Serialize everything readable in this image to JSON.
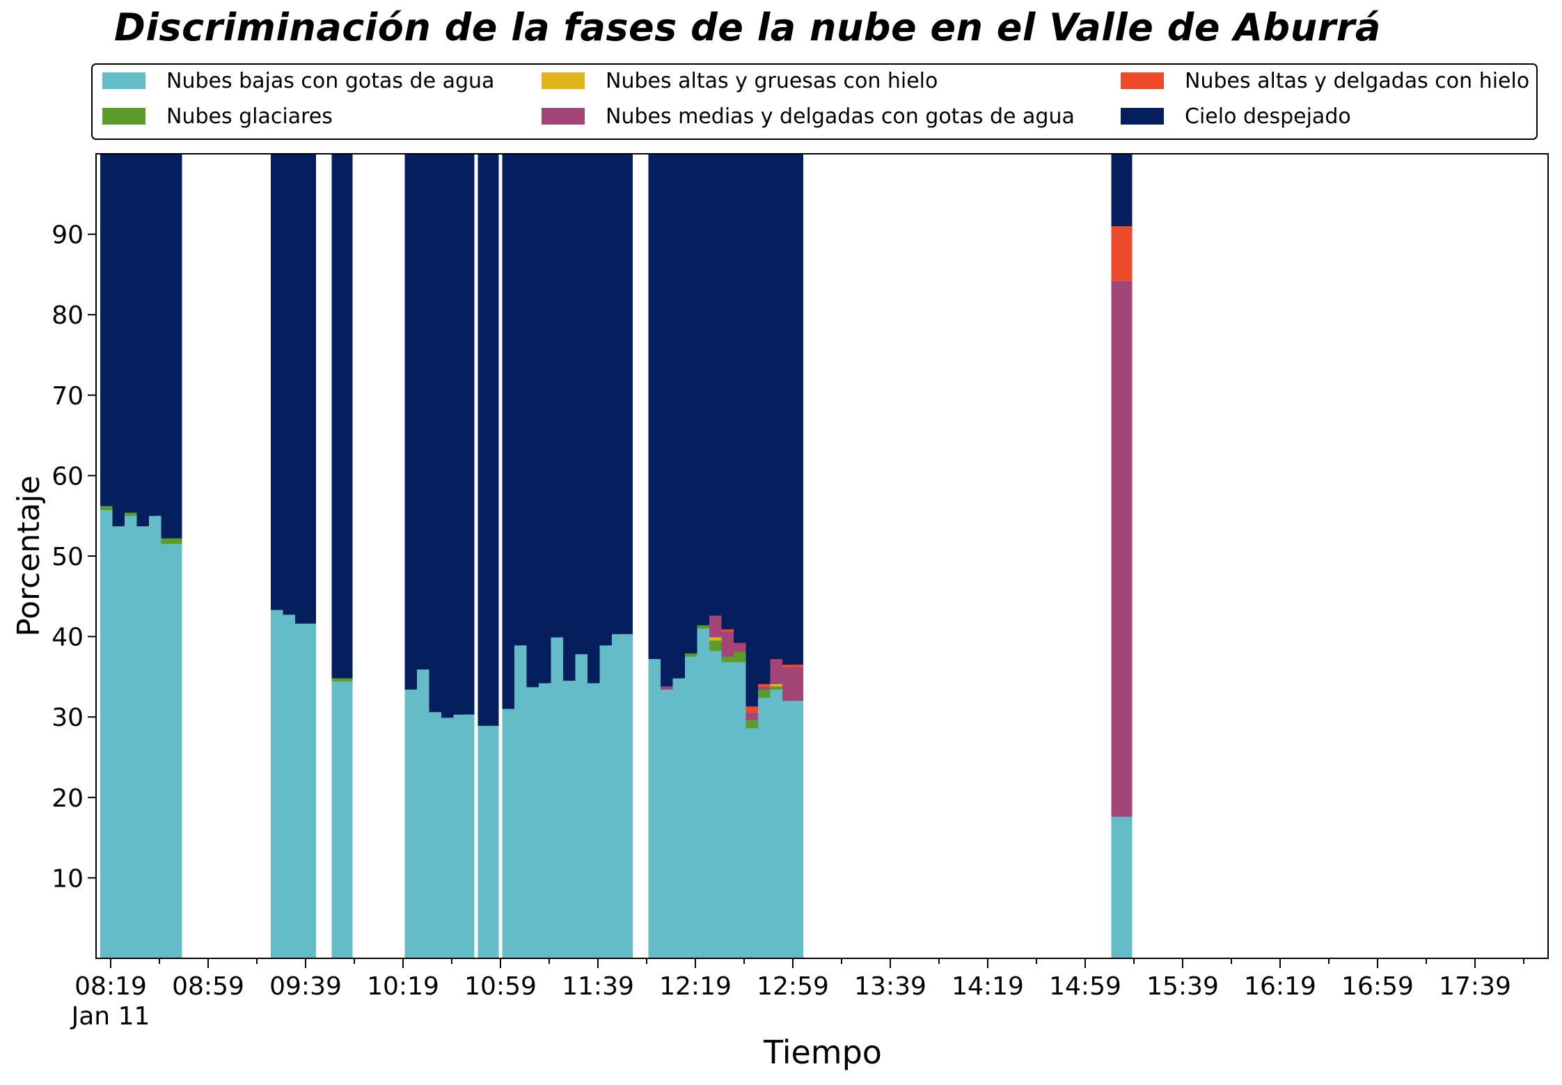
{
  "chart_data": {
    "type": "bar",
    "stacked": true,
    "title": "Discriminación de la fases de la nube en el Valle de Aburrá",
    "xlabel": "Tiempo",
    "ylabel": "Porcentaje",
    "ylim": [
      0,
      100
    ],
    "yticks": [
      10,
      20,
      30,
      40,
      50,
      60,
      70,
      80,
      90
    ],
    "grid": false,
    "legend_placement": "top",
    "x_tick_labels": [
      "08:19",
      "08:59",
      "09:39",
      "10:19",
      "10:59",
      "11:39",
      "12:19",
      "12:59",
      "13:39",
      "14:19",
      "14:59",
      "15:39",
      "16:19",
      "16:59",
      "17:39"
    ],
    "x_date_label": "Jan 11",
    "series": [
      {
        "name": "Nubes bajas con gotas de agua",
        "color": "#64bcc8"
      },
      {
        "name": "Nubes glaciares",
        "color": "#5c9d2a"
      },
      {
        "name": "Nubes altas y gruesas con hielo",
        "color": "#e0b41a"
      },
      {
        "name": "Nubes medias y delgadas con gotas de agua",
        "color": "#a34576"
      },
      {
        "name": "Nubes altas y delgadas con hielo",
        "color": "#ec4a2a"
      },
      {
        "name": "Cielo despejado",
        "color": "#041e5e"
      }
    ],
    "bars": [
      {
        "time": "08:19",
        "values": [
          55.7,
          0.5,
          0,
          0,
          0,
          43.8
        ]
      },
      {
        "time": "08:24",
        "values": [
          53.7,
          0,
          0,
          0,
          0,
          46.3
        ]
      },
      {
        "time": "08:29",
        "values": [
          55.0,
          0.4,
          0,
          0,
          0,
          44.6
        ]
      },
      {
        "time": "08:34",
        "values": [
          53.7,
          0,
          0,
          0,
          0,
          46.3
        ]
      },
      {
        "time": "08:39",
        "values": [
          55.0,
          0,
          0,
          0,
          0,
          45.0
        ]
      },
      {
        "time": "08:44",
        "values": [
          51.5,
          0.7,
          0,
          0,
          0,
          47.8
        ]
      },
      {
        "time": "09:29",
        "values": [
          43.3,
          0,
          0,
          0,
          0,
          56.7
        ]
      },
      {
        "time": "09:34",
        "values": [
          42.7,
          0,
          0,
          0,
          0,
          57.3
        ]
      },
      {
        "time": "09:39",
        "values": [
          41.6,
          0,
          0,
          0,
          0,
          58.4
        ]
      },
      {
        "time": "09:54",
        "values": [
          34.4,
          0.4,
          0,
          0,
          0,
          65.2
        ]
      },
      {
        "time": "10:24",
        "values": [
          33.4,
          0,
          0,
          0,
          0,
          66.6
        ]
      },
      {
        "time": "10:29",
        "values": [
          35.9,
          0,
          0,
          0,
          0,
          64.1
        ]
      },
      {
        "time": "10:34",
        "values": [
          30.6,
          0,
          0,
          0,
          0,
          69.4
        ]
      },
      {
        "time": "10:39",
        "values": [
          29.9,
          0,
          0,
          0,
          0,
          70.1
        ]
      },
      {
        "time": "10:44",
        "values": [
          30.3,
          0,
          0,
          0,
          0,
          69.7
        ]
      },
      {
        "time": "10:54",
        "values": [
          28.9,
          0,
          0,
          0,
          0,
          71.1
        ]
      },
      {
        "time": "11:04",
        "values": [
          31.0,
          0,
          0,
          0,
          0,
          69.0
        ]
      },
      {
        "time": "11:09",
        "values": [
          38.9,
          0,
          0,
          0,
          0,
          61.1
        ]
      },
      {
        "time": "11:14",
        "values": [
          33.7,
          0,
          0,
          0,
          0,
          66.3
        ]
      },
      {
        "time": "11:19",
        "values": [
          34.2,
          0,
          0,
          0,
          0,
          65.8
        ]
      },
      {
        "time": "11:24",
        "values": [
          39.9,
          0,
          0,
          0,
          0,
          60.1
        ]
      },
      {
        "time": "11:29",
        "values": [
          34.5,
          0,
          0,
          0,
          0,
          65.5
        ]
      },
      {
        "time": "11:34",
        "values": [
          37.8,
          0,
          0,
          0,
          0,
          62.2
        ]
      },
      {
        "time": "11:39",
        "values": [
          34.2,
          0,
          0,
          0,
          0,
          65.8
        ]
      },
      {
        "time": "11:44",
        "values": [
          38.9,
          0,
          0,
          0,
          0,
          61.1
        ]
      },
      {
        "time": "11:49",
        "values": [
          40.3,
          0,
          0,
          0,
          0,
          59.7
        ]
      },
      {
        "time": "12:04",
        "values": [
          37.2,
          0,
          0,
          0,
          0,
          62.8
        ]
      },
      {
        "time": "12:09",
        "values": [
          33.4,
          0,
          0,
          0.4,
          0,
          66.2
        ]
      },
      {
        "time": "12:14",
        "values": [
          34.8,
          0,
          0,
          0,
          0,
          65.2
        ]
      },
      {
        "time": "12:19",
        "values": [
          37.5,
          0.4,
          0,
          0,
          0,
          62.1
        ]
      },
      {
        "time": "12:24",
        "values": [
          41.0,
          0.4,
          0,
          0,
          0,
          58.6
        ]
      },
      {
        "time": "12:29",
        "values": [
          38.2,
          1.3,
          0.4,
          2.7,
          0,
          57.4
        ]
      },
      {
        "time": "12:34",
        "values": [
          36.8,
          0.7,
          0,
          3.1,
          0.3,
          59.1
        ]
      },
      {
        "time": "12:39",
        "values": [
          36.8,
          1.3,
          0,
          1.1,
          0,
          60.8
        ]
      },
      {
        "time": "12:44",
        "values": [
          28.6,
          1.0,
          0,
          0.9,
          0.8,
          68.7
        ]
      },
      {
        "time": "12:49",
        "values": [
          32.4,
          1.0,
          0,
          0.3,
          0.4,
          65.9
        ]
      },
      {
        "time": "12:54",
        "values": [
          33.4,
          0.4,
          0.3,
          3.1,
          0,
          62.8
        ]
      },
      {
        "time": "12:59",
        "values": [
          32.0,
          0,
          0,
          4.2,
          0.3,
          63.5
        ]
      },
      {
        "time": "15:14",
        "values": [
          17.6,
          0,
          0,
          66.6,
          6.8,
          9.0
        ]
      }
    ]
  }
}
